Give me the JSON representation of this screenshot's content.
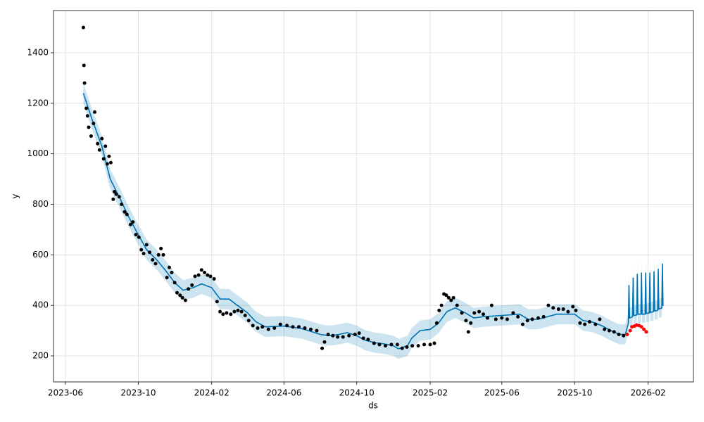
{
  "chart_data": {
    "type": "forecast",
    "xlabel": "ds",
    "ylabel": "y",
    "xlim": [
      "2023-05-12",
      "2026-04-18"
    ],
    "ylim": [
      97,
      1567
    ],
    "xticks": [
      "2023-06",
      "2023-10",
      "2024-02",
      "2024-06",
      "2024-10",
      "2025-02",
      "2025-06",
      "2025-10",
      "2026-02"
    ],
    "yticks": [
      200,
      400,
      600,
      800,
      1000,
      1200,
      1400
    ],
    "grid": true,
    "band": {
      "color": "#0072b2",
      "x": [
        "2023-07-01",
        "2023-07-15",
        "2023-08-01",
        "2023-08-15",
        "2023-09-01",
        "2023-09-15",
        "2023-10-01",
        "2023-10-15",
        "2023-11-01",
        "2023-11-15",
        "2023-12-01",
        "2023-12-15",
        "2024-01-01",
        "2024-01-15",
        "2024-02-01",
        "2024-02-15",
        "2024-03-01",
        "2024-03-15",
        "2024-04-01",
        "2024-04-15",
        "2024-05-01",
        "2024-06-01",
        "2024-07-01",
        "2024-08-01",
        "2024-08-15",
        "2024-09-01",
        "2024-09-15",
        "2024-10-01",
        "2024-10-15",
        "2024-11-01",
        "2024-11-15",
        "2024-12-01",
        "2024-12-10",
        "2024-12-25",
        "2025-01-01",
        "2025-01-15",
        "2025-02-01",
        "2025-02-15",
        "2025-03-01",
        "2025-03-15",
        "2025-04-01",
        "2025-04-15",
        "2025-05-01",
        "2025-06-01",
        "2025-07-01",
        "2025-07-15",
        "2025-08-01",
        "2025-09-01",
        "2025-10-01",
        "2025-10-15",
        "2025-11-01",
        "2025-11-15",
        "2025-12-01",
        "2025-12-15",
        "2025-12-25",
        "2025-12-30",
        "2025-12-31",
        "2026-01-01",
        "2026-01-06",
        "2026-01-07",
        "2026-01-08",
        "2026-01-13",
        "2026-01-14",
        "2026-01-15",
        "2026-01-20",
        "2026-01-21",
        "2026-01-22",
        "2026-01-27",
        "2026-01-28",
        "2026-01-29",
        "2026-02-03",
        "2026-02-04",
        "2026-02-05",
        "2026-02-10",
        "2026-02-11",
        "2026-02-12",
        "2026-02-17",
        "2026-02-18",
        "2026-02-19",
        "2026-02-24",
        "2026-02-25",
        "2026-02-26"
      ],
      "values": [
        1240,
        1140,
        1030,
        900,
        820,
        750,
        680,
        620,
        580,
        540,
        490,
        460,
        470,
        485,
        470,
        425,
        425,
        400,
        370,
        335,
        315,
        318,
        308,
        285,
        280,
        285,
        292,
        280,
        262,
        252,
        248,
        240,
        228,
        240,
        270,
        300,
        305,
        330,
        375,
        390,
        370,
        350,
        355,
        360,
        365,
        345,
        345,
        365,
        365,
        340,
        333,
        320,
        300,
        285,
        285,
        330,
        480,
        350,
        355,
        510,
        360,
        362,
        525,
        365,
        365,
        530,
        365,
        365,
        530,
        368,
        370,
        530,
        372,
        375,
        535,
        378,
        380,
        545,
        385,
        390,
        565,
        398
      ],
      "lower": [
        1200,
        1100,
        990,
        860,
        780,
        710,
        640,
        580,
        540,
        500,
        450,
        420,
        430,
        445,
        430,
        385,
        385,
        360,
        330,
        295,
        275,
        278,
        268,
        245,
        240,
        245,
        252,
        240,
        222,
        212,
        208,
        200,
        188,
        200,
        230,
        260,
        265,
        290,
        335,
        350,
        330,
        310,
        315,
        320,
        325,
        305,
        305,
        325,
        325,
        300,
        293,
        280,
        260,
        245,
        245,
        295,
        440,
        315,
        320,
        470,
        325,
        327,
        485,
        330,
        330,
        490,
        330,
        330,
        490,
        333,
        335,
        490,
        337,
        340,
        495,
        343,
        345,
        505,
        350,
        355,
        525,
        360
      ],
      "upper": [
        1280,
        1180,
        1070,
        940,
        860,
        790,
        720,
        660,
        620,
        580,
        530,
        500,
        510,
        525,
        510,
        465,
        465,
        440,
        410,
        375,
        355,
        358,
        348,
        325,
        320,
        325,
        332,
        320,
        302,
        292,
        288,
        280,
        268,
        280,
        310,
        340,
        345,
        370,
        415,
        430,
        410,
        390,
        395,
        400,
        405,
        385,
        385,
        405,
        405,
        380,
        373,
        360,
        340,
        325,
        325,
        370,
        525,
        390,
        395,
        555,
        400,
        402,
        570,
        405,
        405,
        575,
        405,
        405,
        575,
        408,
        410,
        575,
        412,
        415,
        580,
        418,
        420,
        590,
        425,
        430,
        610,
        440
      ]
    },
    "series": [
      {
        "color": "#000000",
        "x": [
          "2023-07-01",
          "2023-07-02",
          "2023-07-03",
          "2023-07-06",
          "2023-07-08",
          "2023-07-10",
          "2023-07-14",
          "2023-07-18",
          "2023-07-20",
          "2023-07-25",
          "2023-07-28",
          "2023-08-01",
          "2023-08-04",
          "2023-08-07",
          "2023-08-10",
          "2023-08-13",
          "2023-08-16",
          "2023-08-20",
          "2023-08-22",
          "2023-08-25",
          "2023-08-30",
          "2023-09-03",
          "2023-09-08",
          "2023-09-12",
          "2023-09-18",
          "2023-09-22",
          "2023-09-27",
          "2023-10-02",
          "2023-10-06",
          "2023-10-10",
          "2023-10-15",
          "2023-10-20",
          "2023-10-25",
          "2023-10-30",
          "2023-11-04",
          "2023-11-08",
          "2023-11-12",
          "2023-11-18",
          "2023-11-22",
          "2023-11-26",
          "2023-12-01",
          "2023-12-05",
          "2023-12-10",
          "2023-12-14",
          "2023-12-19",
          "2023-12-24",
          "2023-12-30",
          "2024-01-04",
          "2024-01-10",
          "2024-01-15",
          "2024-01-20",
          "2024-01-25",
          "2024-01-30",
          "2024-02-05",
          "2024-02-10",
          "2024-02-15",
          "2024-02-20",
          "2024-02-26",
          "2024-03-04",
          "2024-03-10",
          "2024-03-16",
          "2024-03-22",
          "2024-03-28",
          "2024-04-03",
          "2024-04-10",
          "2024-04-18",
          "2024-04-26",
          "2024-05-06",
          "2024-05-16",
          "2024-05-26",
          "2024-06-06",
          "2024-06-16",
          "2024-06-26",
          "2024-07-06",
          "2024-07-16",
          "2024-07-26",
          "2024-08-04",
          "2024-08-08",
          "2024-08-14",
          "2024-08-22",
          "2024-08-30",
          "2024-09-08",
          "2024-09-18",
          "2024-09-28",
          "2024-10-05",
          "2024-10-12",
          "2024-10-20",
          "2024-10-30",
          "2024-11-08",
          "2024-11-18",
          "2024-11-28",
          "2024-12-08",
          "2024-12-16",
          "2024-12-24",
          "2025-01-02",
          "2025-01-12",
          "2025-01-22",
          "2025-02-01",
          "2025-02-08",
          "2025-02-12",
          "2025-02-16",
          "2025-02-20",
          "2025-02-24",
          "2025-02-28",
          "2025-03-04",
          "2025-03-08",
          "2025-03-12",
          "2025-03-18",
          "2025-03-26",
          "2025-04-02",
          "2025-04-06",
          "2025-04-10",
          "2025-04-16",
          "2025-04-24",
          "2025-05-01",
          "2025-05-08",
          "2025-05-15",
          "2025-05-22",
          "2025-06-01",
          "2025-06-10",
          "2025-06-20",
          "2025-06-28",
          "2025-07-06",
          "2025-07-14",
          "2025-07-22",
          "2025-08-01",
          "2025-08-10",
          "2025-08-18",
          "2025-08-26",
          "2025-09-04",
          "2025-09-12",
          "2025-09-20",
          "2025-09-28",
          "2025-10-03",
          "2025-10-10",
          "2025-10-18",
          "2025-10-26",
          "2025-11-05",
          "2025-11-12",
          "2025-11-20",
          "2025-11-28",
          "2025-12-06",
          "2025-12-14",
          "2025-12-22"
        ],
        "values": [
          1500,
          1350,
          1280,
          1180,
          1150,
          1105,
          1070,
          1120,
          1165,
          1040,
          1015,
          1060,
          980,
          1030,
          960,
          990,
          965,
          820,
          850,
          840,
          830,
          800,
          770,
          760,
          720,
          730,
          680,
          670,
          620,
          605,
          640,
          610,
          580,
          565,
          600,
          625,
          600,
          510,
          550,
          530,
          490,
          450,
          440,
          430,
          420,
          465,
          480,
          515,
          520,
          540,
          530,
          520,
          515,
          505,
          415,
          375,
          365,
          370,
          365,
          375,
          380,
          375,
          360,
          340,
          320,
          310,
          315,
          305,
          310,
          325,
          320,
          315,
          315,
          310,
          305,
          300,
          230,
          255,
          285,
          280,
          275,
          275,
          280,
          285,
          290,
          270,
          265,
          250,
          245,
          240,
          245,
          245,
          230,
          235,
          240,
          240,
          245,
          245,
          250,
          330,
          380,
          400,
          445,
          440,
          430,
          420,
          430,
          400,
          370,
          340,
          295,
          330,
          370,
          375,
          365,
          350,
          400,
          345,
          350,
          345,
          370,
          355,
          325,
          340,
          345,
          350,
          355,
          400,
          390,
          385,
          385,
          375,
          395,
          380,
          330,
          325,
          335,
          325,
          345,
          305,
          300,
          295,
          285,
          280
        ]
      },
      {
        "color": "#ff0000",
        "x": [
          "2025-12-28",
          "2026-01-02",
          "2026-01-05",
          "2026-01-09",
          "2026-01-13",
          "2026-01-17",
          "2026-01-21",
          "2026-01-25",
          "2026-01-29"
        ],
        "values": [
          285,
          300,
          315,
          318,
          322,
          320,
          315,
          305,
          295
        ]
      }
    ]
  }
}
